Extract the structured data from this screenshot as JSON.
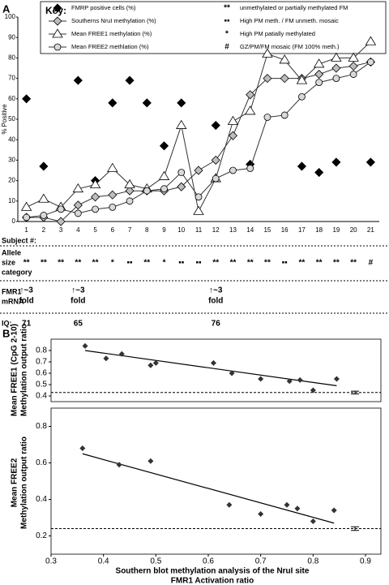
{
  "chart_data": [
    {
      "type": "line",
      "panel": "A",
      "ylabel": "% Positive",
      "xlabel": "Subject #:",
      "categories": [
        "1",
        "2",
        "3",
        "4",
        "5",
        "6",
        "7",
        "8",
        "9",
        "10",
        "11",
        "12",
        "13",
        "14",
        "15",
        "16",
        "17",
        "18",
        "19",
        "20",
        "21"
      ],
      "ylim": [
        0,
        100
      ],
      "yticks": [
        0,
        10,
        20,
        30,
        40,
        50,
        60,
        70,
        80,
        90,
        100
      ],
      "series": [
        {
          "name": "FMRP positive cells (%)",
          "marker": "diamond",
          "color": "#000000",
          "line": false,
          "values": [
            60,
            27,
            null,
            69,
            20,
            58,
            69,
            58,
            37,
            58,
            null,
            47,
            null,
            28,
            null,
            null,
            27,
            24,
            29,
            null,
            29
          ]
        },
        {
          "name": "Southerns NruI methylation (%)",
          "marker": "diamond",
          "color": "#bdbdbd",
          "line": true,
          "values": [
            2,
            2,
            0,
            8,
            12,
            13,
            15,
            15,
            15,
            17,
            25,
            30,
            42,
            62,
            70,
            70,
            70,
            72,
            75,
            76,
            78
          ]
        },
        {
          "name": "Mean FREE1 methylation (%)",
          "marker": "triangle",
          "color": "#ffffff",
          "line": true,
          "values": [
            7,
            11,
            7,
            16,
            18,
            26,
            18,
            16,
            22,
            47,
            5,
            21,
            49,
            54,
            82,
            79,
            69,
            77,
            80,
            80,
            88
          ]
        },
        {
          "name": "Mean FREE2  methlation (%)",
          "marker": "circle",
          "color": "#d9d9d9",
          "line": true,
          "values": [
            2,
            3,
            6,
            4,
            6,
            7,
            10,
            15,
            16,
            24,
            12,
            21,
            25,
            26,
            51,
            52,
            61,
            68,
            70,
            72,
            78
          ]
        }
      ],
      "key": {
        "title": "Key:",
        "notes": [
          {
            "symbol": "**",
            "text": "unmethylated or partially methylated FM"
          },
          {
            "symbol": "▪▪",
            "text": "High PM meth. / FM unmeth. mosaic"
          },
          {
            "symbol": "*",
            "text": "High PM patially methylated"
          },
          {
            "symbol": "#",
            "text": "GZ/PM/FM mosaic (FM 100% meth.)"
          }
        ]
      },
      "allele": {
        "label": [
          "Allele",
          "size",
          "category"
        ],
        "values": [
          "**",
          "**",
          "**",
          "**",
          "**",
          "*",
          "▪▪",
          "**",
          "*",
          "▪▪",
          "▪▪",
          "**",
          "**",
          "**",
          "**",
          "▪▪",
          "**",
          "**",
          "**",
          "**",
          "#"
        ]
      },
      "mrna": {
        "label": [
          "FMR1",
          "mRNA"
        ],
        "values": [
          [
            "↑~3",
            "fold"
          ],
          null,
          null,
          [
            "↑~3",
            "fold"
          ],
          null,
          null,
          null,
          null,
          null,
          null,
          null,
          [
            "↑~3",
            "fold"
          ],
          null,
          null,
          null,
          null,
          null,
          null,
          null,
          null,
          null
        ]
      },
      "iq": {
        "label": "IQ:",
        "values": [
          71,
          null,
          null,
          65,
          null,
          null,
          null,
          null,
          null,
          null,
          null,
          76,
          null,
          null,
          null,
          null,
          null,
          null,
          null,
          null,
          null
        ]
      }
    },
    {
      "type": "scatter",
      "panel": "B",
      "ylabel": [
        "Mean FREE1 (CpG 2-10)",
        "Methylation output ratio"
      ],
      "xlim": [
        0.3,
        0.9
      ],
      "ylim": [
        0.35,
        0.9
      ],
      "yticks": [
        0.4,
        0.5,
        0.6,
        0.7,
        0.8
      ],
      "color": "#333333",
      "x": [
        0.365,
        0.405,
        0.435,
        0.49,
        0.5,
        0.61,
        0.645,
        0.7,
        0.755,
        0.775,
        0.8,
        0.845
      ],
      "values": [
        0.84,
        0.73,
        0.77,
        0.67,
        0.69,
        0.69,
        0.6,
        0.55,
        0.53,
        0.54,
        0.45,
        0.55
      ],
      "trendline": {
        "x": [
          0.365,
          0.845
        ],
        "y": [
          0.8,
          0.49
        ]
      },
      "reference_line": 0.43,
      "error_bar": {
        "x": 0.88,
        "value": 0.43,
        "error": 0.012
      }
    },
    {
      "type": "scatter",
      "ylabel": [
        "Mean FREE2",
        "Methylation output ratio"
      ],
      "xlabel": [
        "Southern blot methylation analysis of the NruI site",
        "FMR1 Activation ratio"
      ],
      "xlim": [
        0.3,
        0.9
      ],
      "xticks": [
        0.3,
        0.4,
        0.5,
        0.6,
        0.7,
        0.8,
        0.9
      ],
      "ylim": [
        0.1,
        0.9
      ],
      "yticks": [
        0.2,
        0.4,
        0.6,
        0.8
      ],
      "color": "#333333",
      "x": [
        0.36,
        0.43,
        0.49,
        0.64,
        0.7,
        0.75,
        0.77,
        0.8,
        0.84
      ],
      "values": [
        0.68,
        0.59,
        0.61,
        0.37,
        0.32,
        0.37,
        0.35,
        0.28,
        0.34
      ],
      "trendline": {
        "x": [
          0.36,
          0.84
        ],
        "y": [
          0.65,
          0.27
        ]
      },
      "reference_line": 0.24,
      "error_bar": {
        "x": 0.88,
        "value": 0.24,
        "error": 0.01
      }
    }
  ]
}
